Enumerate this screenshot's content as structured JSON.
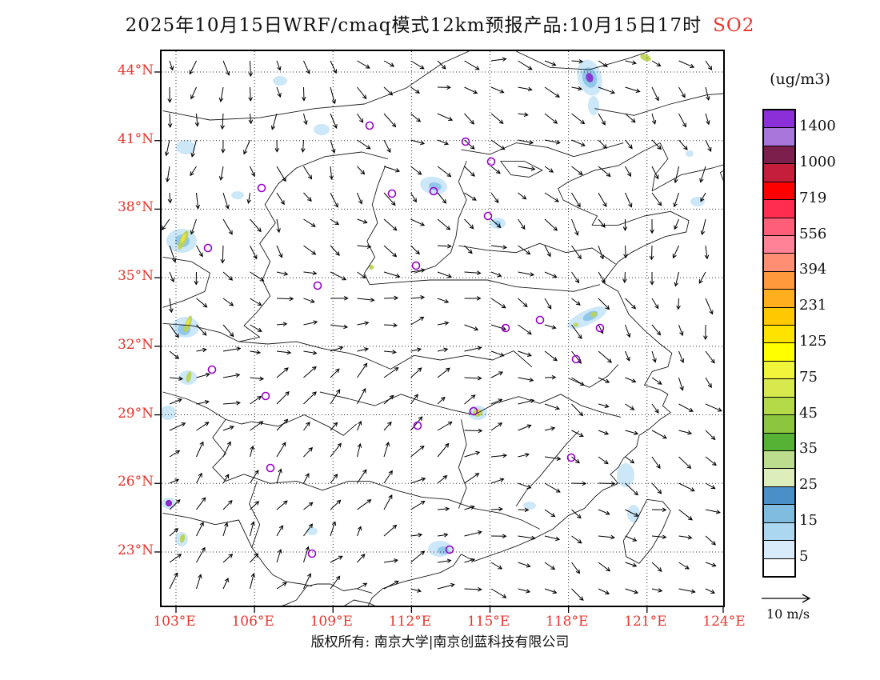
{
  "colors": {
    "red_label": "#E8352C",
    "text": "#111111",
    "marker": "#9900CC",
    "boundary": "#1a1a1a",
    "grid": "#333333"
  },
  "title": {
    "main": "2025年10月15日WRF/cmaq模式12km预报产品:10月15日17时",
    "species": "SO2"
  },
  "footer": {
    "copyright": "版权所有: 南京大学|南京创蓝科技有限公司"
  },
  "wind_scale": {
    "label": "10 m/s"
  },
  "colorbar": {
    "unit": "(ug/m3)",
    "labels": [
      "1400",
      "1000",
      "719",
      "556",
      "394",
      "231",
      "125",
      "75",
      "45",
      "35",
      "25",
      "15",
      "5"
    ],
    "colors_top_to_bottom": [
      "#8B30D9",
      "#A977DC",
      "#7D1F4D",
      "#C41E3A",
      "#FF0000",
      "#FF2D50",
      "#FF5E78",
      "#FF8296",
      "#FF8E73",
      "#FF9A3C",
      "#FFAE1E",
      "#FFC800",
      "#FFE300",
      "#FFFF00",
      "#F0F53C",
      "#D8E94E",
      "#B5DA47",
      "#8CC63F",
      "#55B234",
      "#BCDD8E",
      "#DDEEBB",
      "#4A90C8",
      "#7FBCE0",
      "#ABD7F0",
      "#D7EBFA",
      "#FFFFFF"
    ]
  },
  "axes": {
    "lat_labels": [
      "44°N",
      "41°N",
      "38°N",
      "35°N",
      "32°N",
      "29°N",
      "26°N",
      "23°N"
    ],
    "lon_labels": [
      "103°E",
      "106°E",
      "109°E",
      "112°E",
      "115°E",
      "118°E",
      "121°E",
      "124°E"
    ]
  },
  "chart_data": {
    "type": "heatmap",
    "title": "2025年10月15日WRF/cmaq模式12km预报产品:10月15日17时 SO2",
    "species": "SO2",
    "unit": "ug/m3",
    "forecast_hour_label": "10月15日17时",
    "model": "WRF/cmaq 12km",
    "lon_ticks": [
      103,
      106,
      109,
      112,
      115,
      118,
      121,
      124
    ],
    "lat_ticks": [
      44,
      41,
      38,
      35,
      32,
      29,
      26,
      23
    ],
    "lon_range": [
      102.45,
      124.05
    ],
    "lat_range": [
      20.55,
      44.91
    ],
    "levels": [
      5,
      15,
      25,
      35,
      45,
      75,
      125,
      231,
      394,
      556,
      719,
      1000,
      1400
    ],
    "legend_position": "right",
    "wind_reference_ms": 10,
    "marker_color": "#9900CC",
    "patch_colors": {
      "b1": "#C8E5F7",
      "b2": "#8CC4E8",
      "g": "#BCD44E",
      "y": "#F2E33C",
      "p": "#8430CE"
    },
    "patches": [
      [
        535,
        33,
        15,
        23,
        -15,
        "b1"
      ],
      [
        535,
        33,
        9,
        13,
        -15,
        "b2"
      ],
      [
        535,
        33,
        4.5,
        6,
        -15,
        "p"
      ],
      [
        540,
        68,
        7,
        12,
        0,
        "b1"
      ],
      [
        605,
        8,
        7,
        4,
        20,
        "g"
      ],
      [
        200,
        98,
        10,
        7,
        0,
        "b1"
      ],
      [
        148,
        37,
        9,
        6,
        0,
        "b1"
      ],
      [
        30,
        120,
        12,
        9,
        0,
        "b1"
      ],
      [
        340,
        168,
        17,
        11,
        10,
        "b1"
      ],
      [
        342,
        169,
        8,
        5,
        10,
        "b2"
      ],
      [
        420,
        215,
        10,
        7,
        0,
        "b1"
      ],
      [
        420,
        215,
        4,
        3,
        0,
        "b2"
      ],
      [
        25,
        237,
        19,
        15,
        0,
        "b1"
      ],
      [
        26,
        237,
        9,
        8,
        0,
        "b2"
      ],
      [
        27,
        236,
        4,
        13,
        25,
        "g"
      ],
      [
        27,
        234,
        2,
        6,
        25,
        "y"
      ],
      [
        95,
        180,
        8,
        5,
        0,
        "b1"
      ],
      [
        30,
        345,
        17,
        13,
        0,
        "b1"
      ],
      [
        28,
        348,
        8,
        7,
        0,
        "b2"
      ],
      [
        33,
        341,
        3.5,
        11,
        20,
        "g"
      ],
      [
        33,
        339,
        1.8,
        5,
        20,
        "y"
      ],
      [
        33,
        408,
        11,
        9,
        0,
        "b1"
      ],
      [
        34,
        407,
        3,
        7,
        15,
        "g"
      ],
      [
        8,
        452,
        10,
        9,
        0,
        "b1"
      ],
      [
        395,
        452,
        12,
        9,
        0,
        "b1"
      ],
      [
        395,
        452,
        6,
        5,
        0,
        "g"
      ],
      [
        395,
        451,
        3,
        2.5,
        0,
        "y"
      ],
      [
        532,
        333,
        27,
        9,
        -25,
        "b1"
      ],
      [
        536,
        331,
        10,
        5,
        -25,
        "b2"
      ],
      [
        540,
        329,
        4,
        3,
        -25,
        "g"
      ],
      [
        518,
        342,
        3,
        2.5,
        0,
        "g"
      ],
      [
        580,
        530,
        11,
        15,
        0,
        "b1"
      ],
      [
        590,
        578,
        8,
        11,
        0,
        "b1"
      ],
      [
        460,
        568,
        8,
        5,
        0,
        "b1"
      ],
      [
        348,
        622,
        15,
        10,
        0,
        "b1"
      ],
      [
        352,
        624,
        7,
        5,
        0,
        "b2"
      ],
      [
        188,
        600,
        7,
        5,
        0,
        "b1"
      ],
      [
        670,
        188,
        9,
        6,
        0,
        "b1"
      ],
      [
        660,
        128,
        5,
        4,
        0,
        "b1"
      ],
      [
        262,
        270,
        3.5,
        3,
        0,
        "g"
      ],
      [
        9,
        565,
        9,
        7,
        0,
        "b1"
      ],
      [
        25,
        610,
        8,
        9,
        0,
        "b1"
      ],
      [
        26,
        609,
        3,
        5.5,
        10,
        "g"
      ]
    ],
    "stations": [
      [
        260,
        93
      ],
      [
        380,
        113
      ],
      [
        412,
        138
      ],
      [
        125,
        171
      ],
      [
        288,
        178
      ],
      [
        340,
        175
      ],
      [
        408,
        206
      ],
      [
        58,
        246
      ],
      [
        318,
        268
      ],
      [
        195,
        293
      ],
      [
        430,
        346
      ],
      [
        473,
        336
      ],
      [
        548,
        346
      ],
      [
        518,
        385
      ],
      [
        63,
        398
      ],
      [
        130,
        431
      ],
      [
        320,
        468
      ],
      [
        390,
        450
      ],
      [
        136,
        521
      ],
      [
        512,
        508
      ],
      [
        188,
        628
      ],
      [
        360,
        623
      ]
    ],
    "stations_filled": [
      [
        9,
        565
      ]
    ]
  }
}
